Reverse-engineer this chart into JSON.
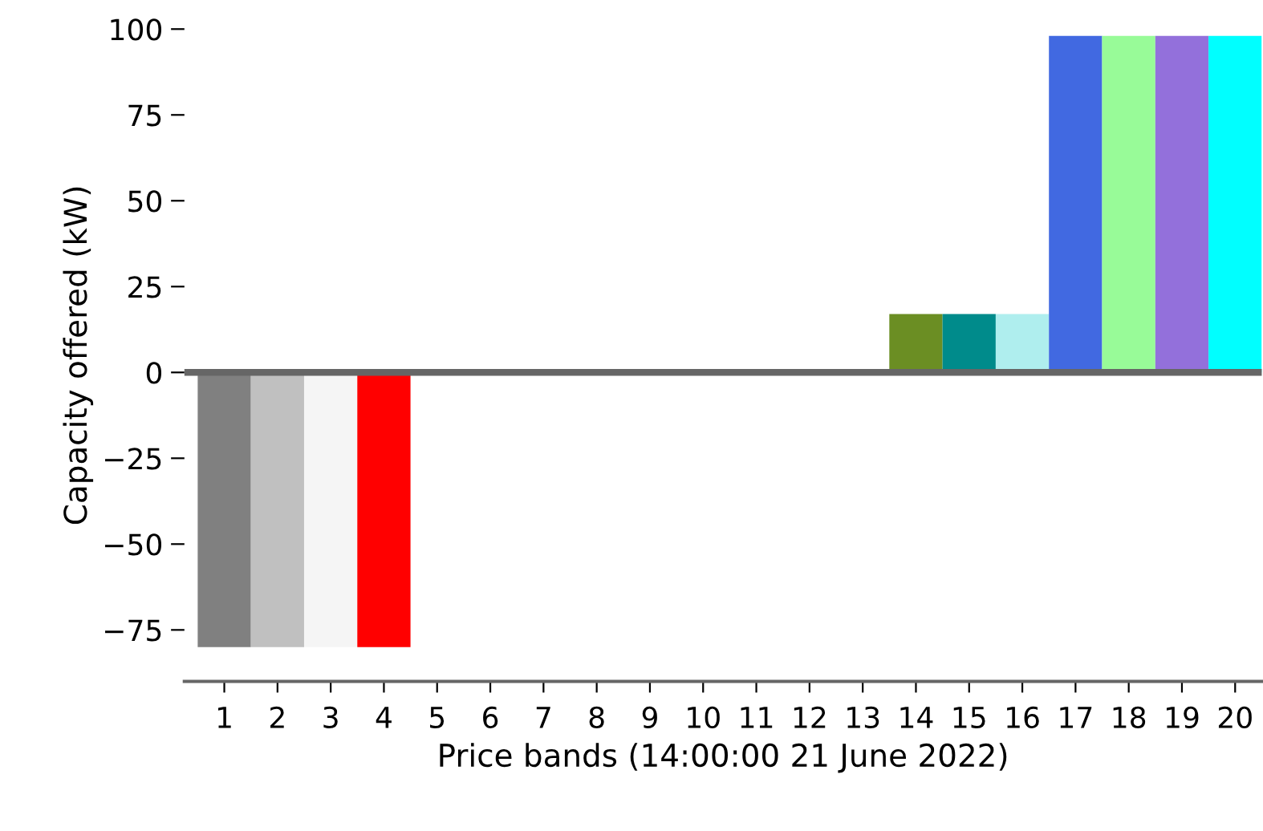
{
  "chart_data": {
    "type": "bar",
    "xlabel": "Price bands (14:00:00 21 June 2022)",
    "ylabel": "Capacity offered (kW)",
    "categories": [
      "1",
      "2",
      "3",
      "4",
      "5",
      "6",
      "7",
      "8",
      "9",
      "10",
      "11",
      "12",
      "13",
      "14",
      "15",
      "16",
      "17",
      "18",
      "19",
      "20"
    ],
    "values": [
      -80,
      -80,
      -80,
      -80,
      0,
      0,
      0,
      0,
      0,
      0,
      0,
      0,
      0,
      17,
      17,
      17,
      98,
      98,
      98,
      98
    ],
    "colors": [
      "#808080",
      "#c0c0c0",
      "#f5f5f5",
      "#ff0000",
      "#696969",
      "#a9a9a9",
      "#d3d3d3",
      "#556b2f",
      "#2f4f4f",
      "#708090",
      "#778899",
      "#6b8e23",
      "#808000",
      "#6b8e23",
      "#008b8b",
      "#afeeee",
      "#4169e1",
      "#98fb98",
      "#9370db",
      "#00ffff"
    ],
    "ylim": [
      -90,
      100
    ],
    "yticks": [
      {
        "value": -75,
        "label": "−75"
      },
      {
        "value": -50,
        "label": "−50"
      },
      {
        "value": -25,
        "label": "−25"
      },
      0,
      25,
      50,
      75,
      100
    ],
    "ref_lines": [
      {
        "axis": "y",
        "value": 0,
        "color": "#666666"
      }
    ],
    "grid": false
  }
}
